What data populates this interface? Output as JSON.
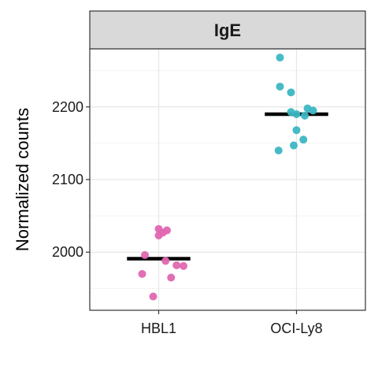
{
  "chart_data": {
    "type": "scatter",
    "title": "",
    "facet_label": "IgE",
    "xlabel": "",
    "ylabel": "Normalized counts",
    "categories": [
      "HBL1",
      "OCI-Ly8"
    ],
    "ylim": [
      1920,
      2280
    ],
    "yticks": [
      2000,
      2100,
      2200
    ],
    "grid": true,
    "legend": "none",
    "series": [
      {
        "category": "HBL1",
        "color": "#E066B0",
        "points": [
          {
            "x": 0.0,
            "y": 2032
          },
          {
            "x": 0.06,
            "y": 2030
          },
          {
            "x": 0.03,
            "y": 2027
          },
          {
            "x": 0.0,
            "y": 2023
          },
          {
            "x": -0.1,
            "y": 1996
          },
          {
            "x": 0.05,
            "y": 1988
          },
          {
            "x": 0.13,
            "y": 1982
          },
          {
            "x": 0.18,
            "y": 1981
          },
          {
            "x": -0.12,
            "y": 1970
          },
          {
            "x": 0.09,
            "y": 1965
          },
          {
            "x": -0.04,
            "y": 1939
          }
        ],
        "median": 1991
      },
      {
        "category": "OCI-Ly8",
        "color": "#3DB6C4",
        "points": [
          {
            "x": -0.12,
            "y": 2268
          },
          {
            "x": -0.12,
            "y": 2228
          },
          {
            "x": -0.04,
            "y": 2220
          },
          {
            "x": 0.08,
            "y": 2198
          },
          {
            "x": 0.12,
            "y": 2195
          },
          {
            "x": -0.04,
            "y": 2193
          },
          {
            "x": 0.0,
            "y": 2190
          },
          {
            "x": 0.06,
            "y": 2188
          },
          {
            "x": 0.0,
            "y": 2168
          },
          {
            "x": 0.05,
            "y": 2155
          },
          {
            "x": -0.02,
            "y": 2147
          },
          {
            "x": -0.13,
            "y": 2140
          }
        ],
        "median": 2190
      }
    ]
  }
}
